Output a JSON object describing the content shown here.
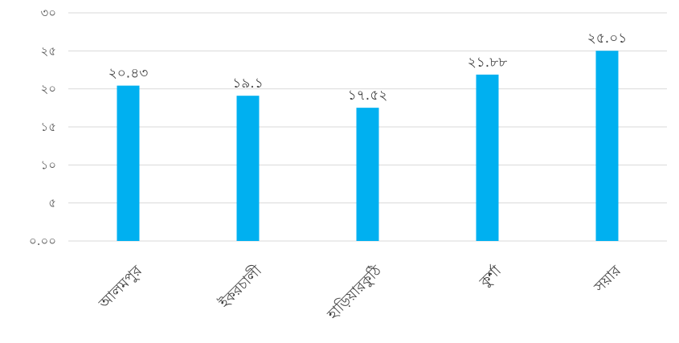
{
  "chart_data": {
    "type": "bar",
    "categories": [
      "আলমপুর",
      "ইকরচালী",
      "হাড়িয়ারকুঠি",
      "কুর্শা",
      "সয়ার"
    ],
    "values": [
      20.43,
      19.1,
      17.52,
      21.88,
      25.01
    ],
    "data_labels": [
      "২০.৪৩",
      "১৯.১",
      "১৭.৫২",
      "২১.৮৮",
      "২৫.০১"
    ],
    "y_ticks": [
      {
        "value": 0,
        "label": "০.০০"
      },
      {
        "value": 5,
        "label": "৫"
      },
      {
        "value": 10,
        "label": "১০"
      },
      {
        "value": 15,
        "label": "১৫"
      },
      {
        "value": 20,
        "label": "২০"
      },
      {
        "value": 25,
        "label": "২৫"
      },
      {
        "value": 30,
        "label": "৩০"
      }
    ],
    "ylim": [
      0,
      30
    ],
    "grid": true,
    "bar_color": "#00b0f0",
    "title": "",
    "xlabel": "",
    "ylabel": ""
  }
}
